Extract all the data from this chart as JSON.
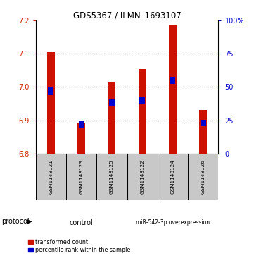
{
  "title": "GDS5367 / ILMN_1693107",
  "samples": [
    "GSM1148121",
    "GSM1148123",
    "GSM1148125",
    "GSM1148122",
    "GSM1148124",
    "GSM1148126"
  ],
  "transformed_counts": [
    7.105,
    6.893,
    7.015,
    7.053,
    7.185,
    6.932
  ],
  "percentile_ranks": [
    47,
    22,
    38,
    40,
    55,
    23
  ],
  "ylim_left": [
    6.8,
    7.2
  ],
  "ylim_right": [
    0,
    100
  ],
  "yticks_left": [
    6.8,
    6.9,
    7.0,
    7.1,
    7.2
  ],
  "yticks_right": [
    0,
    25,
    50,
    75,
    100
  ],
  "bar_width": 0.25,
  "bar_color_red": "#cc1100",
  "bar_color_blue": "#0000cc",
  "group_labels": [
    "control",
    "miR-542-3p overexpression"
  ],
  "group_color": "#90ee90",
  "protocol_label": "protocol",
  "legend_red": "transformed count",
  "legend_blue": "percentile rank within the sample",
  "background_color": "#ffffff",
  "tick_color_left": "#cc2200",
  "tick_color_right": "#0000cc",
  "sample_box_color": "#c8c8c8",
  "grid_yticks": [
    6.9,
    7.0,
    7.1
  ]
}
